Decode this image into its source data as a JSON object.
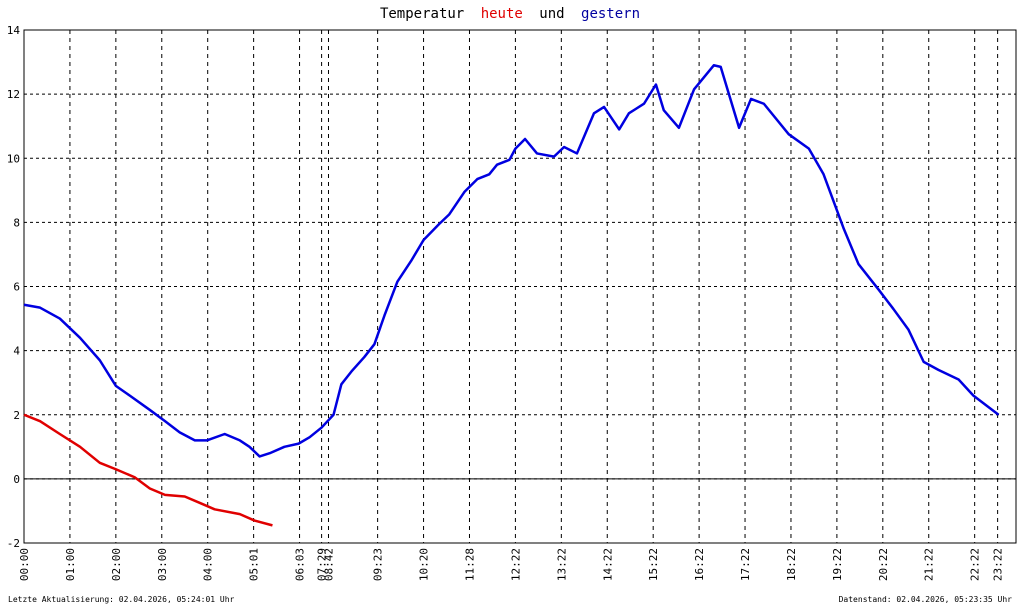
{
  "chart_data": {
    "type": "line",
    "title_words": [
      "Temperatur",
      "und"
    ],
    "footer_left": "Letzte Aktualisierung: 02.04.2026, 05:24:01 Uhr",
    "footer_right": "Datenstand: 02.04.2026, 05:23:35 Uhr",
    "xlim": [
      0,
      21.6
    ],
    "xticks": [
      {
        "value": 0,
        "label": "00:00"
      },
      {
        "value": 1,
        "label": "01:00"
      },
      {
        "value": 2,
        "label": "02:00"
      },
      {
        "value": 3,
        "label": "03:00"
      },
      {
        "value": 4,
        "label": "04:00"
      },
      {
        "value": 5,
        "label": "05:01"
      },
      {
        "value": 6,
        "label": "06:03"
      },
      {
        "value": 6.48,
        "label": "07:29"
      },
      {
        "value": 6.63,
        "label": "08:42"
      },
      {
        "value": 7.7,
        "label": "09:23"
      },
      {
        "value": 8.7,
        "label": "10:20"
      },
      {
        "value": 9.7,
        "label": "11:28"
      },
      {
        "value": 10.7,
        "label": "12:22"
      },
      {
        "value": 11.7,
        "label": "13:22"
      },
      {
        "value": 12.7,
        "label": "14:22"
      },
      {
        "value": 13.7,
        "label": "15:22"
      },
      {
        "value": 14.7,
        "label": "16:22"
      },
      {
        "value": 15.7,
        "label": "17:22"
      },
      {
        "value": 16.7,
        "label": "18:22"
      },
      {
        "value": 17.7,
        "label": "19:22"
      },
      {
        "value": 18.7,
        "label": "20:22"
      },
      {
        "value": 19.7,
        "label": "21:22"
      },
      {
        "value": 20.7,
        "label": "22:22"
      },
      {
        "value": 21.2,
        "label": "23:22"
      }
    ],
    "ylim": [
      -2,
      14
    ],
    "yticks": [
      -2,
      0,
      2,
      4,
      6,
      8,
      10,
      12,
      14
    ],
    "grid": true,
    "series": [
      {
        "name": "heute",
        "color": "#e00000",
        "x": [
          0,
          0.35,
          0.78,
          1.22,
          1.65,
          2,
          2.41,
          2.74,
          3.07,
          3.5,
          3.83,
          4.15,
          4.7,
          5.02,
          5.41
        ],
        "values": [
          2.0,
          1.8,
          1.4,
          1.0,
          0.5,
          0.3,
          0.05,
          -0.3,
          -0.5,
          -0.55,
          -0.75,
          -0.95,
          -1.1,
          -1.3,
          -1.45
        ]
      },
      {
        "name": "gestern",
        "color": "#0000e0",
        "x": [
          0,
          0.35,
          0.78,
          1.22,
          1.65,
          2,
          2.3,
          2.74,
          3.07,
          3.39,
          3.72,
          3.98,
          4.37,
          4.7,
          4.91,
          5.13,
          5.35,
          5.67,
          5.98,
          6.22,
          6.48,
          6.74,
          6.91,
          7.13,
          7.41,
          7.63,
          7.85,
          8.13,
          8.43,
          8.7,
          9.04,
          9.26,
          9.59,
          9.87,
          10.13,
          10.3,
          10.57,
          10.7,
          10.91,
          11.17,
          11.54,
          11.76,
          12.04,
          12.41,
          12.63,
          12.96,
          13.17,
          13.5,
          13.76,
          13.93,
          14.26,
          14.59,
          15.02,
          15.17,
          15.57,
          15.83,
          16.11,
          16.65,
          17.09,
          17.41,
          17.85,
          18.17,
          18.61,
          18.93,
          19.26,
          19.59,
          19.91,
          20.35,
          20.67,
          21.22
        ],
        "values": [
          5.43,
          5.34,
          5.0,
          4.4,
          3.7,
          2.9,
          2.6,
          2.15,
          1.8,
          1.45,
          1.2,
          1.2,
          1.4,
          1.2,
          1.0,
          0.7,
          0.8,
          1.0,
          1.1,
          1.3,
          1.6,
          2.0,
          2.95,
          3.35,
          3.8,
          4.2,
          5.1,
          6.15,
          6.8,
          7.45,
          7.95,
          8.25,
          8.95,
          9.35,
          9.5,
          9.8,
          9.95,
          10.3,
          10.6,
          10.15,
          10.05,
          10.35,
          10.15,
          11.4,
          11.6,
          10.9,
          11.4,
          11.7,
          12.3,
          11.5,
          10.95,
          12.15,
          12.9,
          12.85,
          10.95,
          11.85,
          11.7,
          10.75,
          10.3,
          9.5,
          7.8,
          6.7,
          5.9,
          5.3,
          4.65,
          3.65,
          3.4,
          3.1,
          2.6,
          2.0
        ]
      }
    ]
  }
}
